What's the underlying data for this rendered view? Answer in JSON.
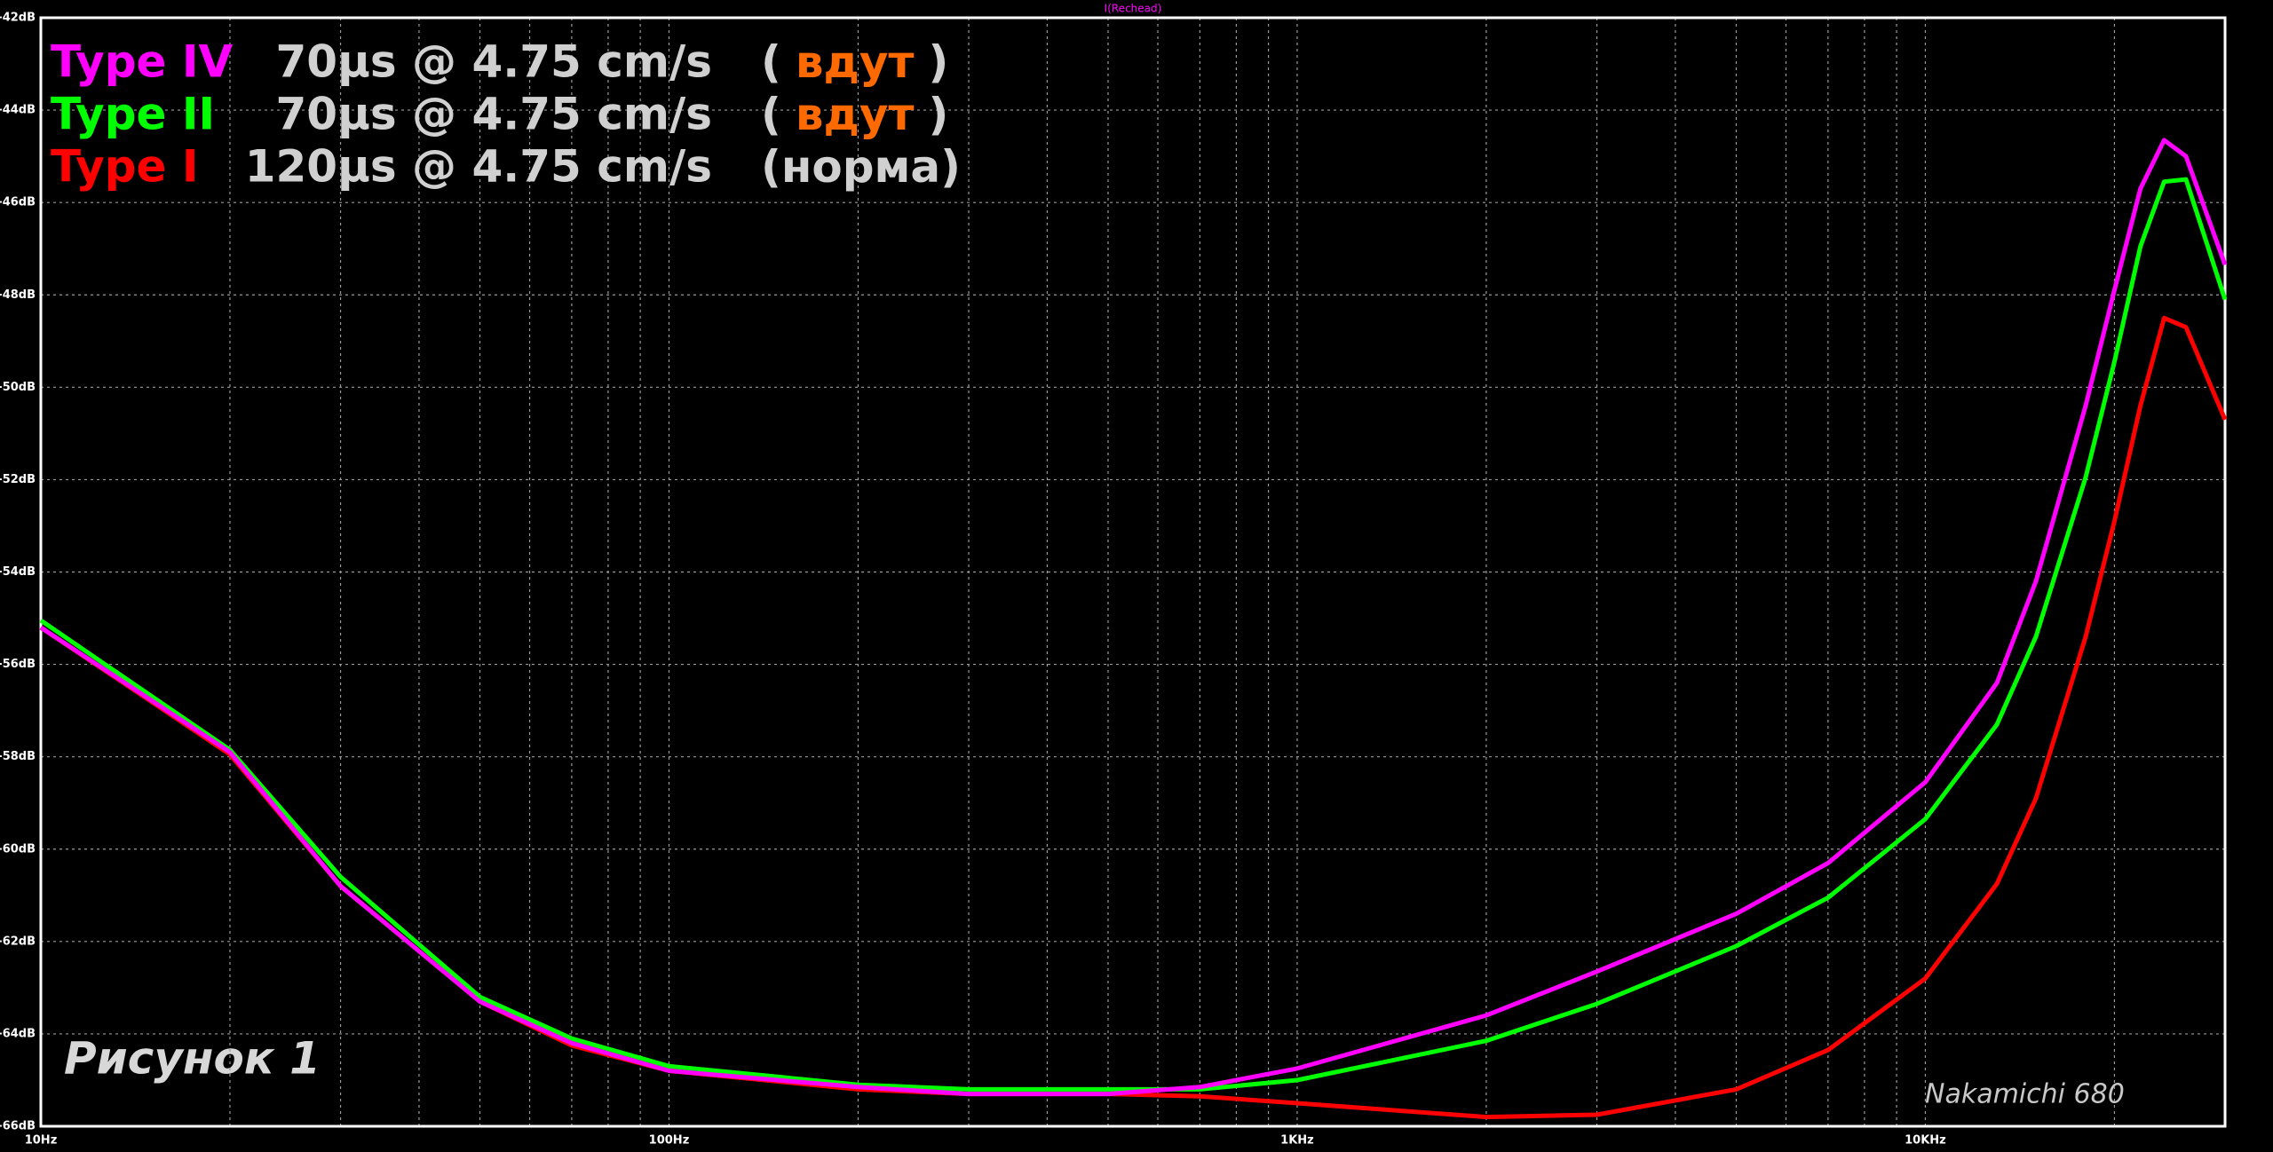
{
  "chart_data": {
    "type": "line",
    "title": "I(Rechead)",
    "log_x": true,
    "grid": true,
    "x": [
      10,
      20,
      30,
      50,
      70,
      100,
      200,
      300,
      500,
      700,
      1000,
      2000,
      3000,
      5000,
      7000,
      10000,
      13000,
      15000,
      18000,
      20000,
      22000,
      24000,
      26000,
      30000
    ],
    "series": [
      {
        "name": "Type IV",
        "color": "#ff00ff",
        "description": "70µs @ 4.75 cm/s",
        "note": [
          "(",
          "вдут",
          ")"
        ],
        "values": [
          -55.2,
          -57.9,
          -60.8,
          -63.3,
          -64.2,
          -64.8,
          -65.15,
          -65.3,
          -65.3,
          -65.15,
          -64.75,
          -63.6,
          -62.65,
          -61.4,
          -60.3,
          -58.55,
          -56.4,
          -54.2,
          -50.4,
          -47.9,
          -45.7,
          -44.65,
          -45.0,
          -47.35
        ]
      },
      {
        "name": "Type II",
        "color": "#00ff00",
        "description": "70µs @ 4.75 cm/s",
        "note": [
          "(",
          "вдут",
          ")"
        ],
        "values": [
          -55.05,
          -57.85,
          -60.6,
          -63.2,
          -64.1,
          -64.7,
          -65.1,
          -65.2,
          -65.2,
          -65.2,
          -65.0,
          -64.15,
          -63.35,
          -62.1,
          -61.05,
          -59.35,
          -57.3,
          -55.4,
          -51.95,
          -49.45,
          -46.95,
          -45.55,
          -45.5,
          -48.1
        ]
      },
      {
        "name": "Type I",
        "color": "#ff0000",
        "description": "120µs @ 4.75 cm/s",
        "note": [
          "(норма)"
        ],
        "values": [
          -55.2,
          -57.95,
          -60.8,
          -63.3,
          -64.25,
          -64.8,
          -65.2,
          -65.3,
          -65.3,
          -65.35,
          -65.5,
          -65.8,
          -65.75,
          -65.2,
          -64.35,
          -62.8,
          -60.75,
          -58.9,
          -55.4,
          -52.9,
          -50.4,
          -48.5,
          -48.7,
          -50.7
        ]
      }
    ],
    "xlim": [
      10,
      30000
    ],
    "ylim": [
      -66,
      -42
    ],
    "xticks": [
      {
        "value": 10,
        "label": "10Hz"
      },
      {
        "value": 20,
        "label": null
      },
      {
        "value": 30,
        "label": null
      },
      {
        "value": 40,
        "label": null
      },
      {
        "value": 50,
        "label": null
      },
      {
        "value": 60,
        "label": null
      },
      {
        "value": 70,
        "label": null
      },
      {
        "value": 80,
        "label": null
      },
      {
        "value": 90,
        "label": null
      },
      {
        "value": 100,
        "label": "100Hz"
      },
      {
        "value": 200,
        "label": null
      },
      {
        "value": 300,
        "label": null
      },
      {
        "value": 400,
        "label": null
      },
      {
        "value": 500,
        "label": null
      },
      {
        "value": 600,
        "label": null
      },
      {
        "value": 700,
        "label": null
      },
      {
        "value": 800,
        "label": null
      },
      {
        "value": 900,
        "label": null
      },
      {
        "value": 1000,
        "label": "1KHz"
      },
      {
        "value": 2000,
        "label": null
      },
      {
        "value": 3000,
        "label": null
      },
      {
        "value": 4000,
        "label": null
      },
      {
        "value": 5000,
        "label": null
      },
      {
        "value": 6000,
        "label": null
      },
      {
        "value": 7000,
        "label": null
      },
      {
        "value": 8000,
        "label": null
      },
      {
        "value": 9000,
        "label": null
      },
      {
        "value": 10000,
        "label": "10KHz"
      },
      {
        "value": 20000,
        "label": null
      }
    ],
    "yticks": [
      {
        "value": -42,
        "label": "-42dB"
      },
      {
        "value": -44,
        "label": "-44dB"
      },
      {
        "value": -46,
        "label": "-46dB"
      },
      {
        "value": -48,
        "label": "-48dB"
      },
      {
        "value": -50,
        "label": "-50dB"
      },
      {
        "value": -52,
        "label": "-52dB"
      },
      {
        "value": -54,
        "label": "-54dB"
      },
      {
        "value": -56,
        "label": "-56dB"
      },
      {
        "value": -58,
        "label": "-58dB"
      },
      {
        "value": -60,
        "label": "-60dB"
      },
      {
        "value": -62,
        "label": "-62dB"
      },
      {
        "value": -64,
        "label": "-64dB"
      },
      {
        "value": -66,
        "label": "-66dB"
      }
    ],
    "annotations": [
      "Рисунок 1",
      "Nakamichi 680"
    ]
  }
}
